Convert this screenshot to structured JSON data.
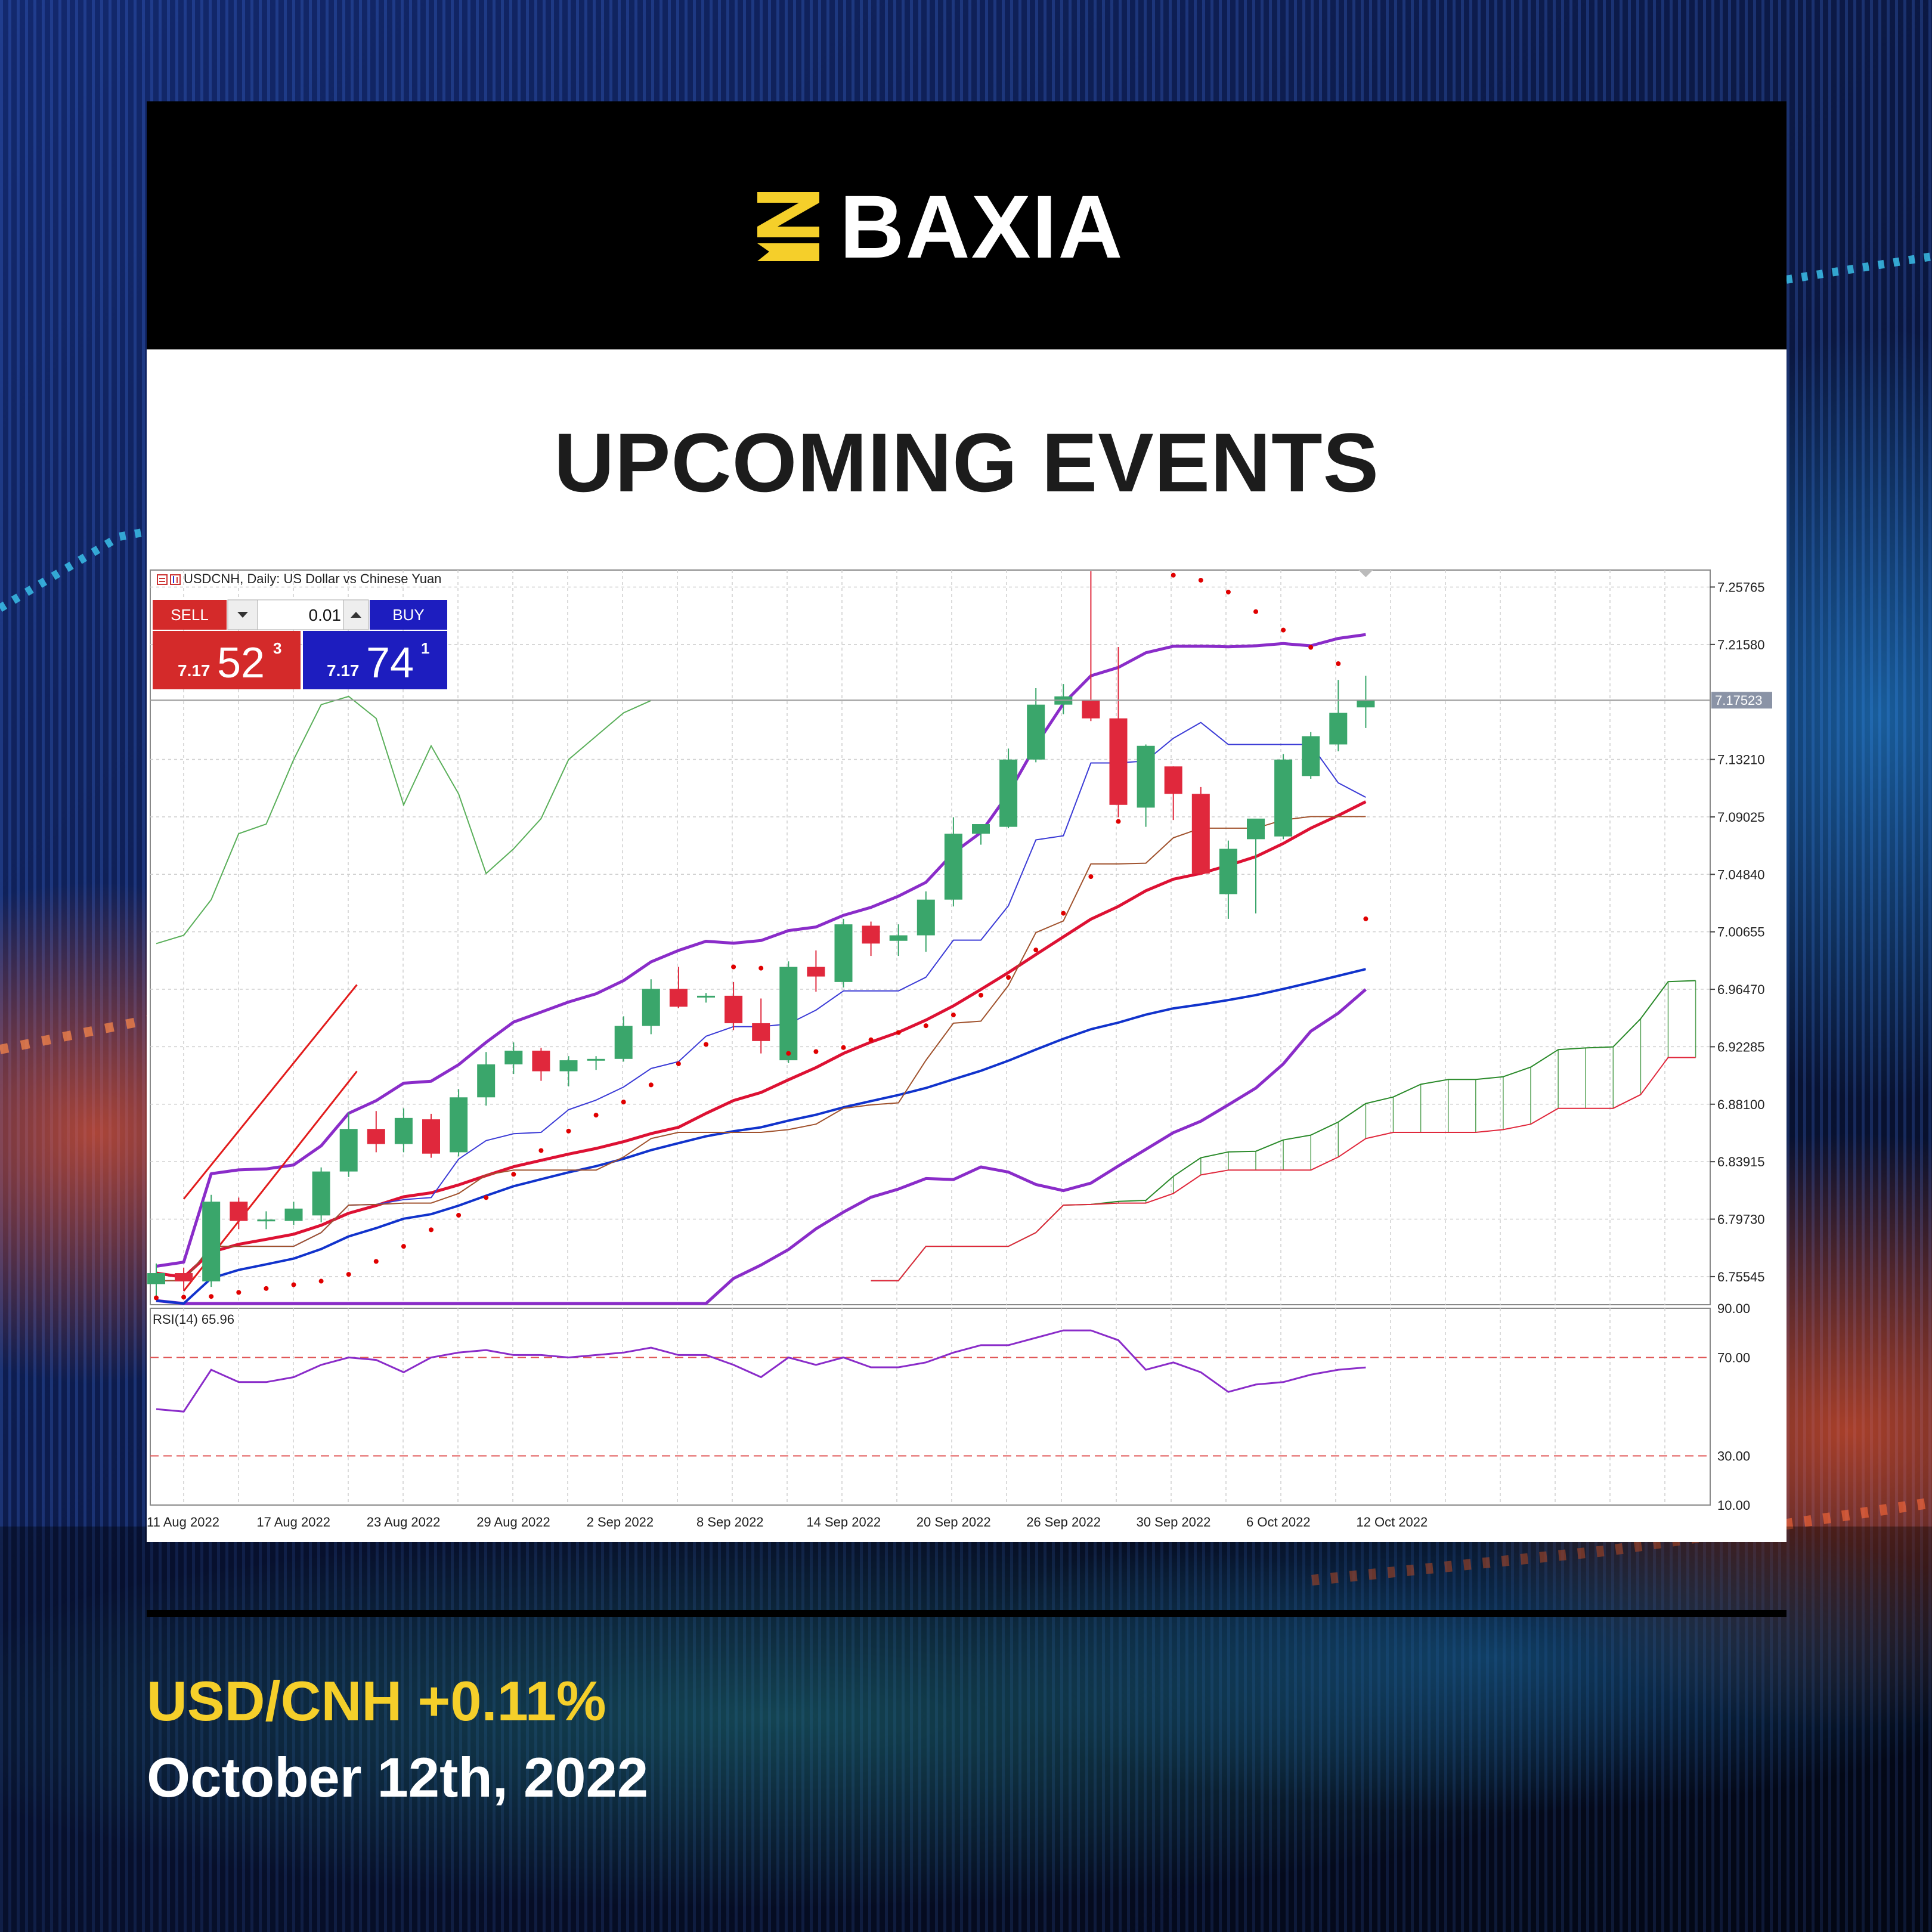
{
  "brand": {
    "name": "BAXIA",
    "accent_color": "#f5cf2a"
  },
  "headline": "UPCOMING EVENTS",
  "footer": {
    "pair_change": "USD/CNH +0.11%",
    "date": "October 12th, 2022"
  },
  "terminal": {
    "chart_title": "USDCNH, Daily:  US Dollar vs Chinese Yuan",
    "sell_label": "SELL",
    "buy_label": "BUY",
    "lot_value": "0.01",
    "sell_price_prefix": "7.17",
    "sell_price_big": "52",
    "sell_price_sup": "3",
    "buy_price_prefix": "7.17",
    "buy_price_big": "74",
    "buy_price_sup": "1",
    "sell_color": "#d42a2a",
    "buy_color": "#1d1dbf"
  },
  "chart_data": {
    "type": "candlestick",
    "symbol": "USDCNH",
    "timeframe": "Daily",
    "ylim": [
      6.735,
      7.27
    ],
    "y_ticks": [
      "7.25765",
      "7.21580",
      "7.13210",
      "7.09025",
      "7.04840",
      "7.00655",
      "6.96470",
      "6.92285",
      "6.88100",
      "6.83915",
      "6.79730",
      "6.75545"
    ],
    "current_price_label": "7.17523",
    "current_price": 7.17523,
    "x_tick_labels": [
      "11 Aug 2022",
      "17 Aug 2022",
      "23 Aug 2022",
      "29 Aug 2022",
      "2 Sep 2022",
      "8 Sep 2022",
      "14 Sep 2022",
      "20 Sep 2022",
      "26 Sep 2022",
      "30 Sep 2022",
      "6 Oct 2022",
      "12 Oct 2022"
    ],
    "candles": [
      {
        "o": 6.75,
        "h": 6.765,
        "l": 6.74,
        "c": 6.758
      },
      {
        "o": 6.758,
        "h": 6.762,
        "l": 6.745,
        "c": 6.752
      },
      {
        "o": 6.752,
        "h": 6.815,
        "l": 6.748,
        "c": 6.81
      },
      {
        "o": 6.81,
        "h": 6.813,
        "l": 6.79,
        "c": 6.796
      },
      {
        "o": 6.797,
        "h": 6.803,
        "l": 6.79,
        "c": 6.797
      },
      {
        "o": 6.796,
        "h": 6.81,
        "l": 6.793,
        "c": 6.805
      },
      {
        "o": 6.8,
        "h": 6.835,
        "l": 6.795,
        "c": 6.832
      },
      {
        "o": 6.832,
        "h": 6.875,
        "l": 6.828,
        "c": 6.863
      },
      {
        "o": 6.863,
        "h": 6.876,
        "l": 6.846,
        "c": 6.852
      },
      {
        "o": 6.852,
        "h": 6.878,
        "l": 6.846,
        "c": 6.871
      },
      {
        "o": 6.87,
        "h": 6.874,
        "l": 6.842,
        "c": 6.845
      },
      {
        "o": 6.846,
        "h": 6.892,
        "l": 6.843,
        "c": 6.886
      },
      {
        "o": 6.886,
        "h": 6.919,
        "l": 6.88,
        "c": 6.91
      },
      {
        "o": 6.91,
        "h": 6.926,
        "l": 6.903,
        "c": 6.92
      },
      {
        "o": 6.92,
        "h": 6.922,
        "l": 6.898,
        "c": 6.905
      },
      {
        "o": 6.905,
        "h": 6.916,
        "l": 6.894,
        "c": 6.913
      },
      {
        "o": 6.913,
        "h": 6.916,
        "l": 6.906,
        "c": 6.914
      },
      {
        "o": 6.914,
        "h": 6.945,
        "l": 6.912,
        "c": 6.938
      },
      {
        "o": 6.938,
        "h": 6.972,
        "l": 6.932,
        "c": 6.965
      },
      {
        "o": 6.965,
        "h": 6.981,
        "l": 6.951,
        "c": 6.952
      },
      {
        "o": 6.959,
        "h": 6.962,
        "l": 6.955,
        "c": 6.96
      },
      {
        "o": 6.96,
        "h": 6.97,
        "l": 6.935,
        "c": 6.94
      },
      {
        "o": 6.94,
        "h": 6.958,
        "l": 6.918,
        "c": 6.927
      },
      {
        "o": 6.913,
        "h": 6.985,
        "l": 6.911,
        "c": 6.981
      },
      {
        "o": 6.981,
        "h": 6.993,
        "l": 6.963,
        "c": 6.974
      },
      {
        "o": 6.97,
        "h": 7.016,
        "l": 6.966,
        "c": 7.012
      },
      {
        "o": 7.011,
        "h": 7.014,
        "l": 6.989,
        "c": 6.998
      },
      {
        "o": 7.0,
        "h": 7.012,
        "l": 6.989,
        "c": 7.004
      },
      {
        "o": 7.004,
        "h": 7.036,
        "l": 6.992,
        "c": 7.03
      },
      {
        "o": 7.03,
        "h": 7.09,
        "l": 7.025,
        "c": 7.078
      },
      {
        "o": 7.078,
        "h": 7.083,
        "l": 7.07,
        "c": 7.085
      },
      {
        "o": 7.083,
        "h": 7.14,
        "l": 7.082,
        "c": 7.132
      },
      {
        "o": 7.132,
        "h": 7.184,
        "l": 7.13,
        "c": 7.172
      },
      {
        "o": 7.172,
        "h": 7.187,
        "l": 7.165,
        "c": 7.178
      },
      {
        "o": 7.175,
        "h": 7.27,
        "l": 7.16,
        "c": 7.162
      },
      {
        "o": 7.162,
        "h": 7.214,
        "l": 7.09,
        "c": 7.099
      },
      {
        "o": 7.097,
        "h": 7.143,
        "l": 7.083,
        "c": 7.142
      },
      {
        "o": 7.127,
        "h": 7.127,
        "l": 7.088,
        "c": 7.107
      },
      {
        "o": 7.107,
        "h": 7.112,
        "l": 7.048,
        "c": 7.049
      },
      {
        "o": 7.034,
        "h": 7.073,
        "l": 7.016,
        "c": 7.067
      },
      {
        "o": 7.074,
        "h": 7.087,
        "l": 7.02,
        "c": 7.089
      },
      {
        "o": 7.076,
        "h": 7.136,
        "l": 7.074,
        "c": 7.132
      },
      {
        "o": 7.12,
        "h": 7.152,
        "l": 7.118,
        "c": 7.149
      },
      {
        "o": 7.143,
        "h": 7.19,
        "l": 7.138,
        "c": 7.166
      },
      {
        "o": 7.17,
        "h": 7.193,
        "l": 7.155,
        "c": 7.175
      }
    ],
    "rsi": {
      "label": "RSI(14) 65.96",
      "ylim": [
        10,
        90
      ],
      "levels": [
        70,
        30
      ],
      "y_ticks": [
        "90.00",
        "70.00",
        "30.00",
        "10.00"
      ],
      "values": [
        49,
        48,
        65,
        60,
        60,
        62,
        67,
        70,
        69,
        64,
        70,
        72,
        73,
        71,
        71,
        70,
        71,
        72,
        74,
        71,
        71,
        67,
        62,
        70,
        67,
        70,
        66,
        66,
        68,
        72,
        75,
        75,
        78,
        81,
        81,
        77,
        65,
        68,
        64,
        56,
        59,
        60,
        63,
        65,
        65.96
      ]
    },
    "colors": {
      "bull": "#3aa66b",
      "bear": "#e0283c",
      "ma_fast": "#dd1133",
      "ma_slow": "#1133cc",
      "bands": "#8a2cc9",
      "tenkan": "#3b3bd6",
      "kijun": "#a0522d",
      "cloud_green": "#2a8a2a",
      "cloud_red": "#e0283c",
      "sar": "#e00000",
      "chikou": "#5aaf5a"
    }
  }
}
